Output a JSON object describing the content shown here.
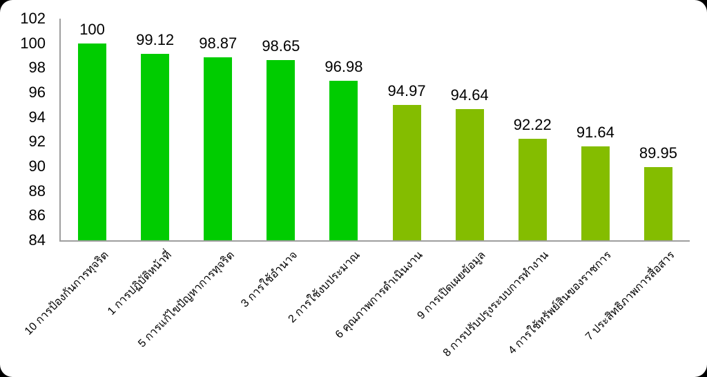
{
  "page": {
    "background_color": "#000000",
    "card_background_color": "#ffffff"
  },
  "chart_data": {
    "type": "bar",
    "title": "",
    "xlabel": "",
    "ylabel": "",
    "categories": [
      "10 การป้องกันการทุจริต",
      "1 การปฏิบัติหน้าที่",
      "5 การแก้ไขปัญหาการทุจริต",
      "3 การใช้อำนาจ",
      "2 การใช้งบประมาณ",
      "6 คุณภาพการดำเนินงาน",
      "9 การเปิดเผยข้อมูล",
      "8 การปรับปรุงระบบการทำงาน",
      "4 การใช้ทรัพย์สินของราชการ",
      "7 ประสิทธิภาพการสื่อสาร"
    ],
    "values": [
      100,
      99.12,
      98.87,
      98.65,
      96.98,
      94.97,
      94.64,
      92.22,
      91.64,
      89.95
    ],
    "data_labels": [
      "100",
      "99.12",
      "98.87",
      "98.65",
      "96.98",
      "94.97",
      "94.64",
      "92.22",
      "91.64",
      "89.95"
    ],
    "bar_colors": [
      "#00CC00",
      "#00CC00",
      "#00CC00",
      "#00CC00",
      "#00CC00",
      "#84BD00",
      "#84BD00",
      "#84BD00",
      "#84BD00",
      "#84BD00"
    ],
    "ylim": [
      84,
      102
    ],
    "yticks": [
      84,
      86,
      88,
      90,
      92,
      94,
      96,
      98,
      100,
      102
    ],
    "ytick_step": 2,
    "grid": false,
    "legend": false,
    "axis_color": "#9e9e9e",
    "text_color": "#000000",
    "x_label_rotation_deg": 45
  }
}
